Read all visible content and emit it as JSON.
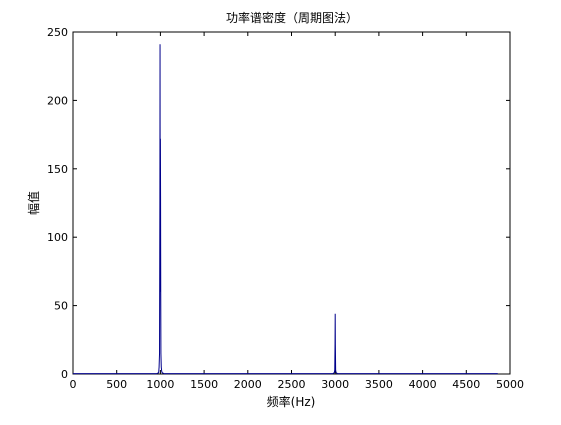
{
  "chart_data": {
    "type": "line",
    "title": "功率谱密度（周期图法）",
    "xlabel": "频率(Hz)",
    "ylabel": "幅值",
    "xlim": [
      0,
      5000
    ],
    "ylim": [
      0,
      250
    ],
    "xticks": [
      0,
      500,
      1000,
      1500,
      2000,
      2500,
      3000,
      3500,
      4000,
      4500,
      5000
    ],
    "yticks": [
      0,
      50,
      100,
      150,
      200,
      250
    ],
    "grid": false,
    "line_color": "#00008b",
    "series": [
      {
        "x": [
          0,
          960,
          980,
          985,
          990,
          994,
          996,
          998,
          1000,
          1002,
          1004,
          1006,
          1010,
          1015,
          1020,
          1040,
          2975,
          2990,
          2995,
          2998,
          3000,
          3002,
          3005,
          3010,
          3025,
          4860
        ],
        "values": [
          0.3,
          0.3,
          1,
          5,
          15,
          128,
          241,
          60,
          172,
          130,
          58,
          15,
          5,
          2,
          1,
          0.3,
          0.3,
          1,
          3,
          22,
          44,
          21,
          3,
          1,
          0.3,
          0.3
        ]
      }
    ]
  }
}
